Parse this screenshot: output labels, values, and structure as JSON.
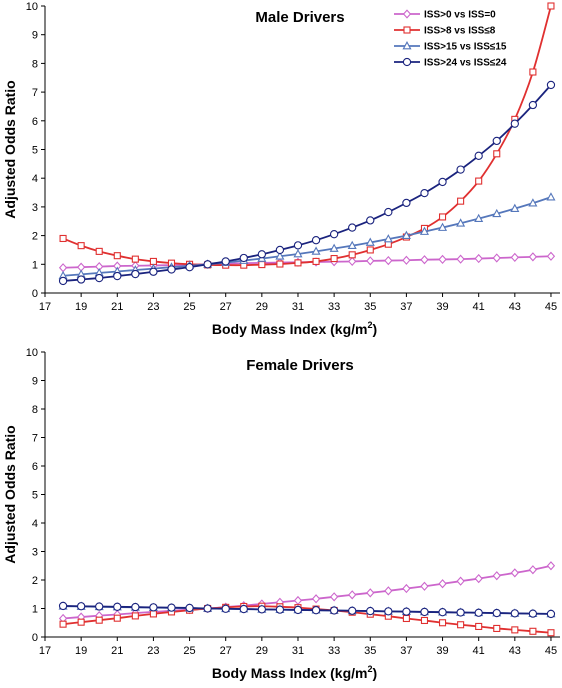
{
  "chart_data": [
    {
      "type": "line",
      "title": "Male Drivers",
      "xlabel": "Body Mass Index (kg/m",
      "xlabel_sup": "2",
      "xlabel_close": ")",
      "ylabel": "Adjusted Odds Ratio",
      "xlim": [
        17,
        45.5
      ],
      "ylim": [
        0,
        10
      ],
      "xticks": [
        17,
        19,
        21,
        23,
        25,
        27,
        29,
        31,
        33,
        35,
        37,
        39,
        41,
        43,
        45
      ],
      "yticks": [
        0,
        1,
        2,
        3,
        4,
        5,
        6,
        7,
        8,
        9,
        10
      ],
      "grid": false,
      "legend_position": "top-right",
      "x": [
        18,
        19,
        20,
        21,
        22,
        23,
        24,
        25,
        26,
        27,
        28,
        29,
        30,
        31,
        32,
        33,
        34,
        35,
        36,
        37,
        38,
        39,
        40,
        41,
        42,
        43,
        44,
        45
      ],
      "series": [
        {
          "name": "ISS>0 vs ISS=0",
          "color": "#cc66cc",
          "marker": "diamond",
          "values": [
            0.88,
            0.9,
            0.92,
            0.94,
            0.95,
            0.96,
            0.97,
            0.98,
            1.0,
            1.02,
            1.04,
            1.05,
            1.06,
            1.07,
            1.08,
            1.09,
            1.1,
            1.12,
            1.13,
            1.14,
            1.16,
            1.17,
            1.18,
            1.2,
            1.22,
            1.24,
            1.26,
            1.28
          ]
        },
        {
          "name": "ISS>8 vs  ISS≤8",
          "color": "#e03030",
          "marker": "square",
          "values": [
            1.9,
            1.65,
            1.45,
            1.3,
            1.18,
            1.1,
            1.04,
            1.0,
            0.98,
            0.97,
            0.97,
            0.99,
            1.01,
            1.05,
            1.1,
            1.2,
            1.33,
            1.5,
            1.7,
            1.95,
            2.25,
            2.65,
            3.2,
            3.9,
            4.85,
            6.05,
            7.7,
            10.0
          ]
        },
        {
          "name": "ISS>15 vs  ISS≤15",
          "color": "#5577bb",
          "marker": "triangle",
          "values": [
            0.6,
            0.65,
            0.7,
            0.75,
            0.8,
            0.85,
            0.9,
            0.95,
            1.0,
            1.06,
            1.13,
            1.2,
            1.28,
            1.36,
            1.45,
            1.55,
            1.65,
            1.76,
            1.88,
            2.0,
            2.14,
            2.28,
            2.43,
            2.59,
            2.76,
            2.94,
            3.13,
            3.34
          ]
        },
        {
          "name": "ISS>24 vs  ISS≤24",
          "color": "#1a237e",
          "marker": "circle",
          "values": [
            0.42,
            0.47,
            0.52,
            0.59,
            0.66,
            0.74,
            0.82,
            0.9,
            1.0,
            1.1,
            1.22,
            1.35,
            1.5,
            1.66,
            1.84,
            2.05,
            2.28,
            2.53,
            2.82,
            3.14,
            3.48,
            3.87,
            4.3,
            4.78,
            5.3,
            5.9,
            6.55,
            7.25
          ]
        }
      ]
    },
    {
      "type": "line",
      "title": "Female Drivers",
      "xlabel": "Body Mass Index (kg/m",
      "xlabel_sup": "2",
      "xlabel_close": ")",
      "ylabel": "Adjusted Odds Ratio",
      "xlim": [
        17,
        45.5
      ],
      "ylim": [
        0,
        10
      ],
      "xticks": [
        17,
        19,
        21,
        23,
        25,
        27,
        29,
        31,
        33,
        35,
        37,
        39,
        41,
        43,
        45
      ],
      "yticks": [
        0,
        1,
        2,
        3,
        4,
        5,
        6,
        7,
        8,
        9,
        10
      ],
      "grid": false,
      "x": [
        18,
        19,
        20,
        21,
        22,
        23,
        24,
        25,
        26,
        27,
        28,
        29,
        30,
        31,
        32,
        33,
        34,
        35,
        36,
        37,
        38,
        39,
        40,
        41,
        42,
        43,
        44,
        45
      ],
      "series": [
        {
          "name": "ISS>0 vs ISS=0",
          "color": "#cc66cc",
          "marker": "diamond",
          "values": [
            0.65,
            0.7,
            0.75,
            0.79,
            0.84,
            0.88,
            0.92,
            0.96,
            1.0,
            1.05,
            1.1,
            1.16,
            1.22,
            1.28,
            1.34,
            1.41,
            1.48,
            1.55,
            1.62,
            1.7,
            1.78,
            1.87,
            1.96,
            2.05,
            2.15,
            2.25,
            2.36,
            2.5
          ]
        },
        {
          "name": "ISS>8 vs  ISS≤8",
          "color": "#e03030",
          "marker": "square",
          "values": [
            0.45,
            0.52,
            0.59,
            0.66,
            0.74,
            0.81,
            0.88,
            0.94,
            1.0,
            1.04,
            1.07,
            1.08,
            1.06,
            1.03,
            0.98,
            0.93,
            0.87,
            0.8,
            0.73,
            0.65,
            0.58,
            0.5,
            0.43,
            0.37,
            0.3,
            0.25,
            0.2,
            0.15
          ]
        },
        {
          "name": "ISS>15 vs  ISS≤15",
          "color": "#5577bb",
          "marker": "triangle",
          "values": [
            1.08,
            1.07,
            1.06,
            1.05,
            1.04,
            1.03,
            1.02,
            1.01,
            1.0,
            0.99,
            0.98,
            0.97,
            0.96,
            0.95,
            0.94,
            0.93,
            0.92,
            0.91,
            0.9,
            0.89,
            0.88,
            0.87,
            0.86,
            0.85,
            0.84,
            0.83,
            0.82,
            0.81
          ]
        },
        {
          "name": "ISS>24 vs  ISS≤24",
          "color": "#1a237e",
          "marker": "circle",
          "values": [
            1.09,
            1.08,
            1.07,
            1.06,
            1.05,
            1.04,
            1.03,
            1.02,
            1.0,
            0.99,
            0.98,
            0.97,
            0.96,
            0.95,
            0.94,
            0.93,
            0.92,
            0.91,
            0.9,
            0.89,
            0.88,
            0.87,
            0.86,
            0.85,
            0.84,
            0.83,
            0.82,
            0.81
          ]
        }
      ]
    }
  ]
}
